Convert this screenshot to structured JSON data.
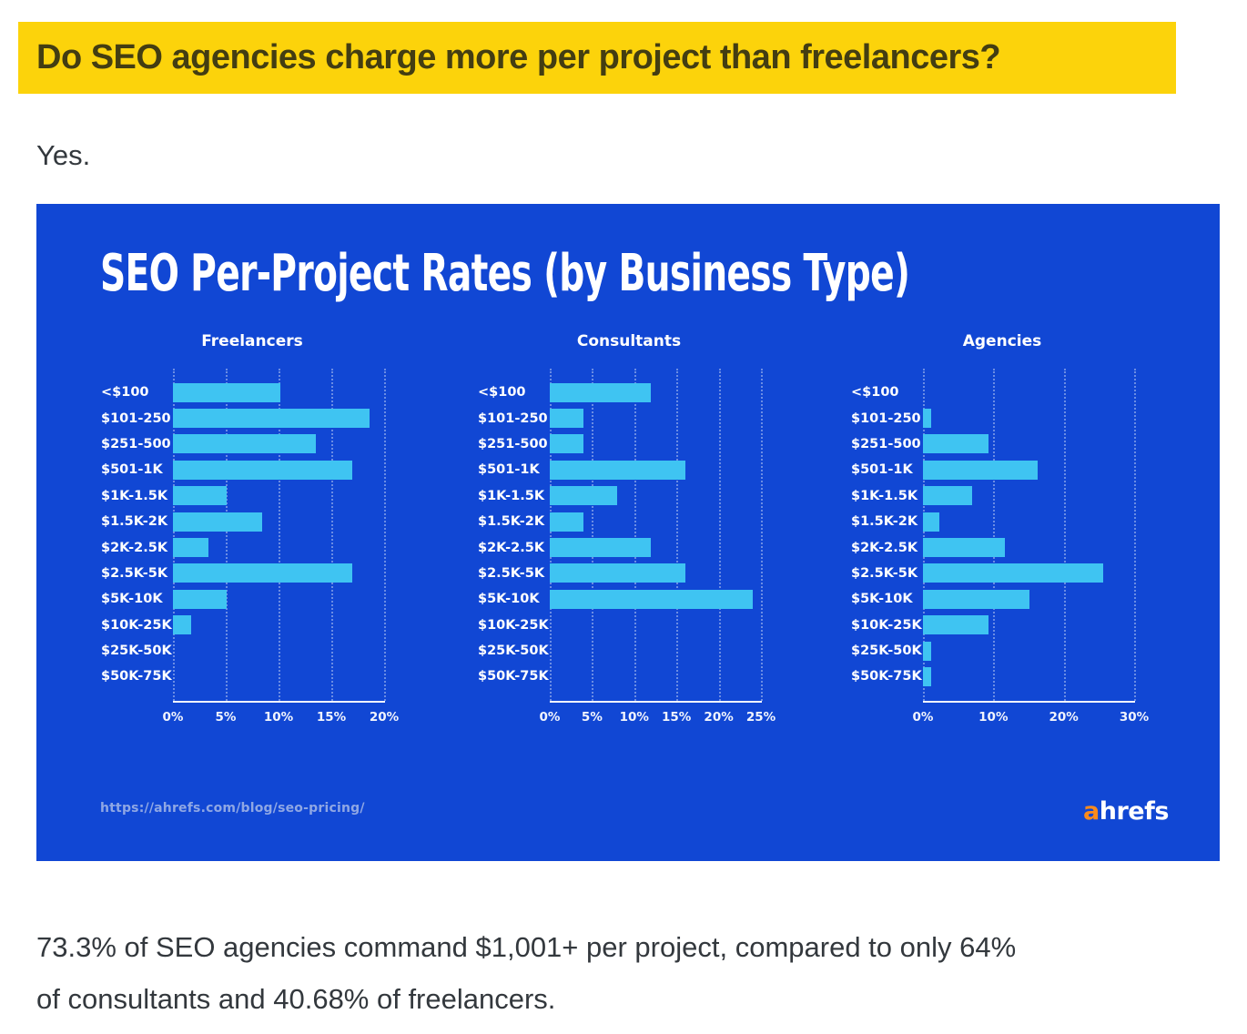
{
  "page": {
    "heading": "Do SEO agencies charge more per project than freelancers?",
    "intro": "Yes.",
    "conclusion_lines": [
      "73.3% of SEO agencies command $1,001+ per project, compared to only 64%",
      "of consultants and 40.68% of freelancers."
    ]
  },
  "figure": {
    "title": "SEO Per-Project Rates (by Business Type)",
    "source_url": "https://ahrefs.com/blog/seo-pricing/",
    "logo_prefix": "a",
    "logo_suffix": "hrefs",
    "colors": {
      "figure_background": "#1147d4",
      "bar": "#3fc4f2",
      "highlight_yellow": "#fcd30b",
      "logo_accent_orange": "#fb8b1c"
    }
  },
  "chart_data": [
    {
      "type": "bar",
      "orientation": "horizontal",
      "title": "Freelancers",
      "categories": [
        "<$100",
        "$101-250",
        "$251-500",
        "$501-1K",
        "$1K-1.5K",
        "$1.5K-2K",
        "$2K-2.5K",
        "$2.5K-5K",
        "$5K-10K",
        "$10K-25K",
        "$25K-50K",
        "$50K-75K"
      ],
      "values": [
        10.17,
        18.64,
        13.56,
        16.95,
        5.08,
        8.47,
        3.39,
        16.95,
        5.08,
        1.69,
        0,
        0
      ],
      "unit": "%",
      "xlim": [
        0,
        20
      ],
      "ticks": [
        "0%",
        "5%",
        "10%",
        "15%",
        "20%"
      ],
      "grid": "dotted-vertical",
      "legend": "none"
    },
    {
      "type": "bar",
      "orientation": "horizontal",
      "title": "Consultants",
      "categories": [
        "<$100",
        "$101-250",
        "$251-500",
        "$501-1K",
        "$1K-1.5K",
        "$1.5K-2K",
        "$2K-2.5K",
        "$2.5K-5K",
        "$5K-10K",
        "$10K-25K",
        "$25K-50K",
        "$50K-75K"
      ],
      "values": [
        12,
        4,
        4,
        16,
        8,
        4,
        12,
        16,
        24,
        0,
        0,
        0
      ],
      "unit": "%",
      "xlim": [
        0,
        25
      ],
      "ticks": [
        "0%",
        "5%",
        "10%",
        "15%",
        "20%",
        "25%"
      ],
      "grid": "dotted-vertical",
      "legend": "none"
    },
    {
      "type": "bar",
      "orientation": "horizontal",
      "title": "Agencies",
      "categories": [
        "<$100",
        "$101-250",
        "$251-500",
        "$501-1K",
        "$1K-1.5K",
        "$1.5K-2K",
        "$2K-2.5K",
        "$2.5K-5K",
        "$5K-10K",
        "$10K-25K",
        "$25K-50K",
        "$50K-75K"
      ],
      "values": [
        0,
        1.16,
        9.3,
        16.28,
        6.98,
        2.33,
        11.63,
        25.58,
        15.12,
        9.3,
        1.16,
        1.16
      ],
      "unit": "%",
      "xlim": [
        0,
        30
      ],
      "ticks": [
        "0%",
        "10%",
        "20%",
        "30%"
      ],
      "grid": "dotted-vertical",
      "legend": "none"
    }
  ]
}
